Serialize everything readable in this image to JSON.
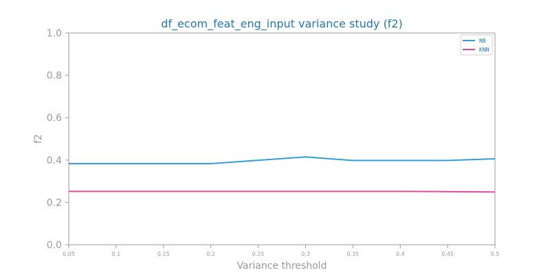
{
  "chart_data": {
    "type": "line",
    "title": "df_ecom_feat_eng_input variance study (f2)",
    "xlabel": "Variance threshold",
    "ylabel": "f2",
    "x": [
      0.05,
      0.1,
      0.15,
      0.2,
      0.25,
      0.3,
      0.35,
      0.4,
      0.45,
      0.5
    ],
    "x_tick_labels": [
      "0.05",
      "0.1",
      "0.15",
      "0.2",
      "0.25",
      "0.3",
      "0.35",
      "0.4",
      "0.45",
      "0.5"
    ],
    "ylim": [
      0.0,
      1.0
    ],
    "y_ticks": [
      0.0,
      0.2,
      0.4,
      0.6,
      0.8,
      1.0
    ],
    "y_tick_labels": [
      "0.0",
      "0.2",
      "0.4",
      "0.6",
      "0.8",
      "1.0"
    ],
    "grid": false,
    "legend_position": "top-right",
    "series": [
      {
        "name": "NB",
        "color": "#2e9fd8",
        "values": [
          0.383,
          0.383,
          0.383,
          0.383,
          0.399,
          0.415,
          0.398,
          0.398,
          0.398,
          0.406
        ]
      },
      {
        "name": "KNN",
        "color": "#e0489b",
        "values": [
          0.252,
          0.252,
          0.252,
          0.252,
          0.252,
          0.252,
          0.252,
          0.252,
          0.251,
          0.249
        ]
      }
    ]
  }
}
